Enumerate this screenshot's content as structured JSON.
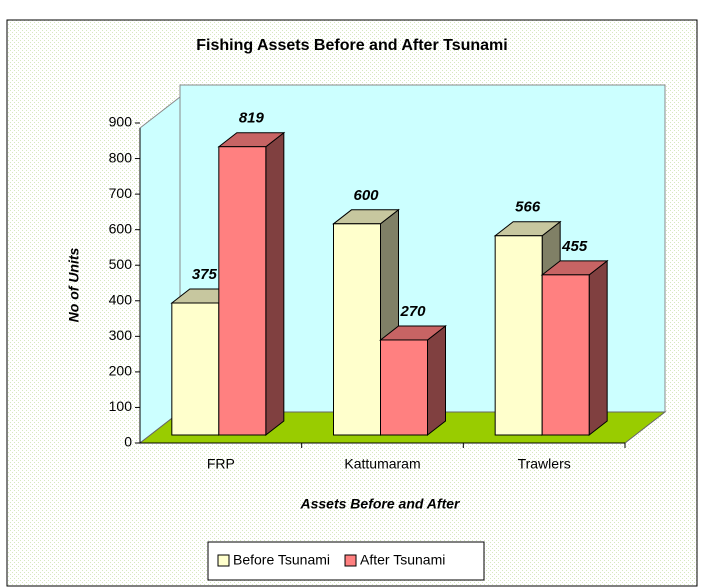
{
  "chart_data": {
    "type": "bar3d",
    "title": "Fishing Assets Before and After Tsunami",
    "xlabel": "Assets Before and After",
    "ylabel": "No of Units",
    "categories": [
      "FRP",
      "Kattumaram",
      "Trawlers"
    ],
    "series": [
      {
        "name": "Before Tsunami",
        "color": "#ffffcc",
        "values": [
          375,
          600,
          566
        ]
      },
      {
        "name": "After Tsunami",
        "color": "#ff8080",
        "values": [
          819,
          270,
          455
        ]
      }
    ],
    "ylim": [
      0,
      900
    ],
    "yticks": [
      0,
      100,
      200,
      300,
      400,
      500,
      600,
      700,
      800,
      900
    ],
    "legend": "bottom"
  }
}
